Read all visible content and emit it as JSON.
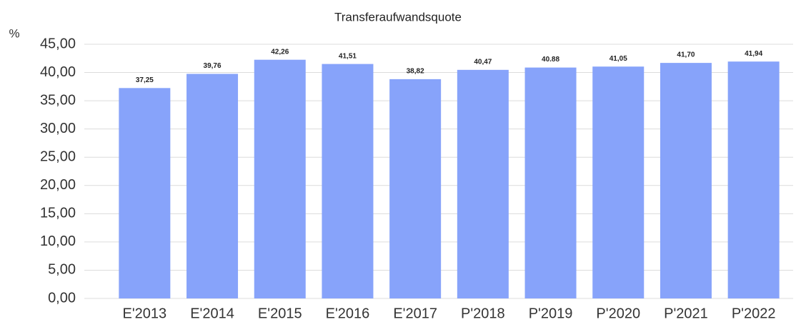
{
  "chart_data": {
    "type": "bar",
    "title": "Transferaufwandsquote",
    "ylabel": "%",
    "categories": [
      "E'2013",
      "E'2014",
      "E'2015",
      "E'2016",
      "E'2017",
      "P'2018",
      "P'2019",
      "P'2020",
      "P'2021",
      "P'2022"
    ],
    "values": [
      37.25,
      39.76,
      42.26,
      41.51,
      38.82,
      40.47,
      40.88,
      41.05,
      41.7,
      41.94
    ],
    "value_labels": [
      "37,25",
      "39,76",
      "42,26",
      "41,51",
      "38,82",
      "40,47",
      "40.88",
      "41,05",
      "41,70",
      "41,94"
    ],
    "color": "#87a3fa",
    "ylim": [
      0,
      45
    ],
    "yticks": [
      {
        "value": 0,
        "label": "0,00"
      },
      {
        "value": 5,
        "label": "5,00"
      },
      {
        "value": 10,
        "label": "10,00"
      },
      {
        "value": 15,
        "label": "15,00"
      },
      {
        "value": 20,
        "label": "20,00"
      },
      {
        "value": 25,
        "label": "25,00"
      },
      {
        "value": 30,
        "label": "30,00"
      },
      {
        "value": 35,
        "label": "35,00"
      },
      {
        "value": 40,
        "label": "40,00"
      },
      {
        "value": 45,
        "label": "45,00"
      }
    ],
    "grid": true
  }
}
